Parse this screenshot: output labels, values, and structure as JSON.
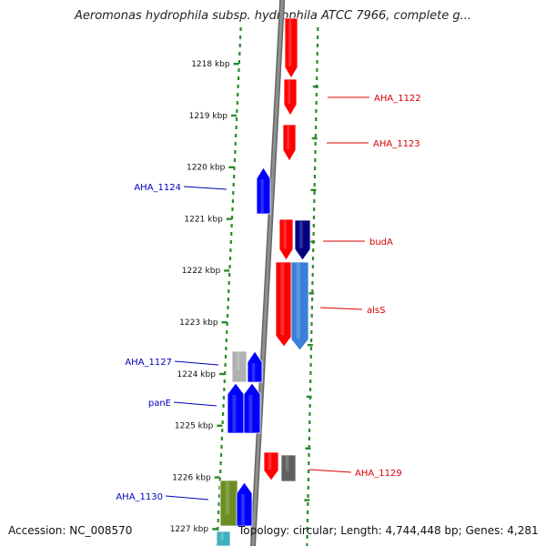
{
  "title": "Aeromonas hydrophila subsp. hydrophila ATCC 7966, complete g...",
  "footer": {
    "accession": "Accession: NC_008570",
    "summary": "Topology: circular; Length: 4,744,448 bp; Genes: 4,281"
  },
  "ruler": {
    "unit": "kbp",
    "ticks": [
      "1218 kbp",
      "1219 kbp",
      "1220 kbp",
      "1221 kbp",
      "1222 kbp",
      "1223 kbp",
      "1224 kbp",
      "1225 kbp",
      "1226 kbp",
      "1227 kbp"
    ]
  },
  "colors": {
    "forward_strand": "#0000ff",
    "reverse_strand": "#ff0000",
    "forward_label": "#0000bb",
    "reverse_label": "#dd0000",
    "backbone": "#909090",
    "strand_ring": "#2a8a2a"
  },
  "labels": [
    {
      "text": "AHA_1122",
      "strand": "reverse"
    },
    {
      "text": "AHA_1123",
      "strand": "reverse"
    },
    {
      "text": "AHA_1124",
      "strand": "forward"
    },
    {
      "text": "budA",
      "strand": "reverse"
    },
    {
      "text": "alsS",
      "strand": "reverse"
    },
    {
      "text": "AHA_1127",
      "strand": "forward"
    },
    {
      "text": "panE",
      "strand": "forward"
    },
    {
      "text": "AHA_1129",
      "strand": "reverse"
    },
    {
      "text": "AHA_1130",
      "strand": "forward"
    }
  ],
  "features": [
    {
      "strand": "reverse",
      "color": "#ff0000"
    },
    {
      "strand": "reverse",
      "color": "#ff0000"
    },
    {
      "strand": "reverse",
      "color": "#ff0000"
    },
    {
      "strand": "forward",
      "color": "#0000ff"
    },
    {
      "strand": "reverse",
      "color": "#ff0000"
    },
    {
      "strand": "reverse",
      "color": "#000080"
    },
    {
      "strand": "reverse",
      "color": "#ff0000"
    },
    {
      "strand": "reverse",
      "color": "#3b7fd6"
    },
    {
      "strand": "forward",
      "color": "#b0b0b0"
    },
    {
      "strand": "forward",
      "color": "#0000ff"
    },
    {
      "strand": "forward",
      "color": "#0000ff"
    },
    {
      "strand": "forward",
      "color": "#0000ff"
    },
    {
      "strand": "reverse",
      "color": "#ff0000"
    },
    {
      "strand": "reverse",
      "color": "#606060"
    },
    {
      "strand": "forward",
      "color": "#6b8e23"
    },
    {
      "strand": "forward",
      "color": "#0000ff"
    },
    {
      "strand": "forward",
      "color": "#40b0c0"
    }
  ]
}
